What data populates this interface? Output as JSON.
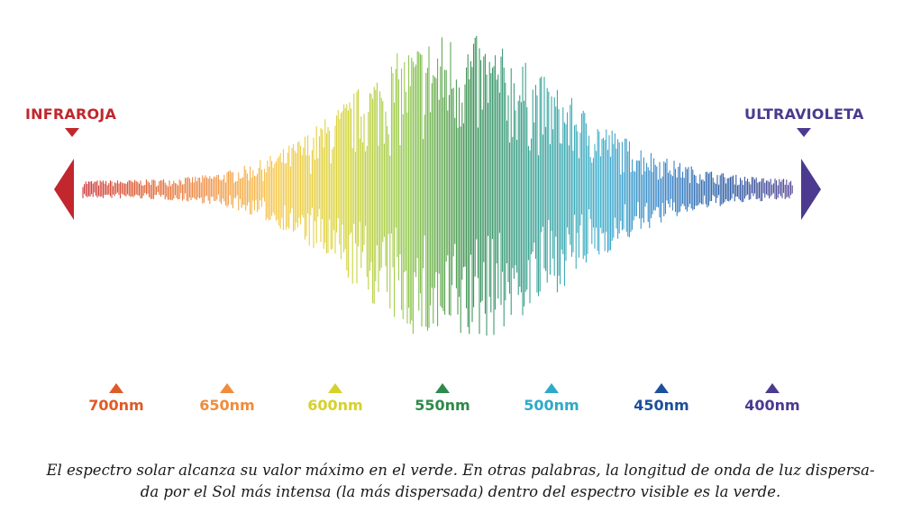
{
  "infrared": {
    "label": "INFRAROJA",
    "color": "#c1272d",
    "icon": "triangle-down-icon"
  },
  "ultraviolet": {
    "label": "ULTRAVIOLETA",
    "color": "#4b3a8f",
    "icon": "triangle-down-icon"
  },
  "wavelengths": [
    {
      "label": "700nm",
      "color": "#e05a26"
    },
    {
      "label": "650nm",
      "color": "#f08c3a"
    },
    {
      "label": "600nm",
      "color": "#d6d12a"
    },
    {
      "label": "550nm",
      "color": "#2e8a4a"
    },
    {
      "label": "500nm",
      "color": "#2fa9c9"
    },
    {
      "label": "450nm",
      "color": "#1c4f9c"
    },
    {
      "label": "400nm",
      "color": "#4b3a8f"
    }
  ],
  "spectrum_gradient": [
    "#c8272d",
    "#e05a26",
    "#f08c3a",
    "#f6c43a",
    "#d6d12a",
    "#8cc63f",
    "#2e8a4a",
    "#2a9c8f",
    "#2fa9c9",
    "#2b7cc4",
    "#1c4f9c",
    "#4b3a8f"
  ],
  "caption": {
    "line1": "El espectro solar alcanza su valor máximo en el verde. En otras palabras, la longitud de onda de luz dispersa-",
    "line2": "da por el Sol más intensa (la más dispersada) dentro del espectro visible es la verde."
  }
}
